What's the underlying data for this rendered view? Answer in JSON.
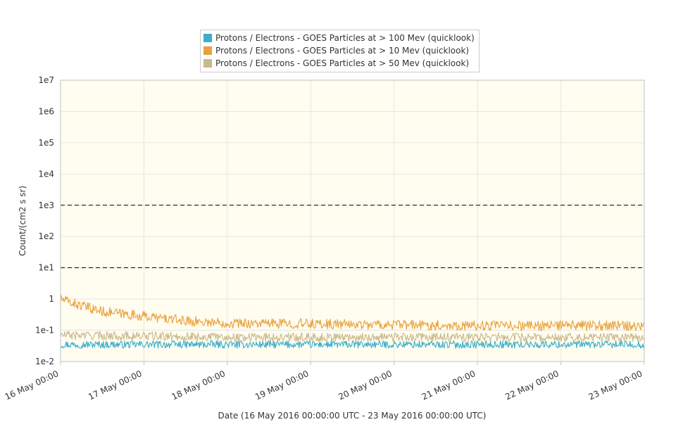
{
  "chart_data": {
    "type": "line",
    "title": "",
    "xlabel": "Date (16 May 2016 00:00:00 UTC - 23 May 2016 00:00:00 UTC)",
    "ylabel": "Count/(cm2 s sr)",
    "y_scale": "log",
    "ylim": [
      0.01,
      10000000
    ],
    "y_ticks": [
      {
        "value": 0.01,
        "label": "1e-2"
      },
      {
        "value": 0.1,
        "label": "1e-1"
      },
      {
        "value": 1,
        "label": "1"
      },
      {
        "value": 10,
        "label": "1e1"
      },
      {
        "value": 100,
        "label": "1e2"
      },
      {
        "value": 1000,
        "label": "1e3"
      },
      {
        "value": 10000,
        "label": "1e4"
      },
      {
        "value": 100000,
        "label": "1e5"
      },
      {
        "value": 1000000,
        "label": "1e6"
      },
      {
        "value": 10000000,
        "label": "1e7"
      }
    ],
    "xlim": [
      "2016-05-16 00:00",
      "2016-05-23 00:00"
    ],
    "x_ticks": [
      "16 May 00:00",
      "17 May 00:00",
      "18 May 00:00",
      "19 May 00:00",
      "20 May 00:00",
      "21 May 00:00",
      "22 May 00:00",
      "23 May 00:00"
    ],
    "threshold_lines": [
      10,
      1000
    ],
    "grid": true,
    "legend_position": "top-center",
    "plot_background": "#fffcf0",
    "series": [
      {
        "name": "Protons / Electrons - GOES Particles at > 100 Mev (quicklook)",
        "color": "#3aaecb",
        "x": [
          "2016-05-16",
          "2016-05-17",
          "2016-05-18",
          "2016-05-19",
          "2016-05-20",
          "2016-05-21",
          "2016-05-22",
          "2016-05-23"
        ],
        "values": [
          0.035,
          0.035,
          0.035,
          0.035,
          0.035,
          0.035,
          0.035,
          0.035
        ]
      },
      {
        "name": "Protons / Electrons - GOES Particles at > 10 Mev (quicklook)",
        "color": "#e9a23b",
        "x": [
          "2016-05-16",
          "2016-05-16 06:00",
          "2016-05-16 12:00",
          "2016-05-17",
          "2016-05-17 12:00",
          "2016-05-18",
          "2016-05-19",
          "2016-05-20",
          "2016-05-21",
          "2016-05-22",
          "2016-05-23"
        ],
        "values": [
          1.0,
          0.6,
          0.4,
          0.28,
          0.2,
          0.17,
          0.16,
          0.15,
          0.14,
          0.14,
          0.14
        ]
      },
      {
        "name": "Protons / Electrons - GOES Particles at > 50 Mev (quicklook)",
        "color": "#c8b88a",
        "x": [
          "2016-05-16",
          "2016-05-17",
          "2016-05-18",
          "2016-05-19",
          "2016-05-20",
          "2016-05-21",
          "2016-05-22",
          "2016-05-23"
        ],
        "values": [
          0.07,
          0.065,
          0.06,
          0.06,
          0.06,
          0.06,
          0.06,
          0.06
        ]
      }
    ]
  }
}
